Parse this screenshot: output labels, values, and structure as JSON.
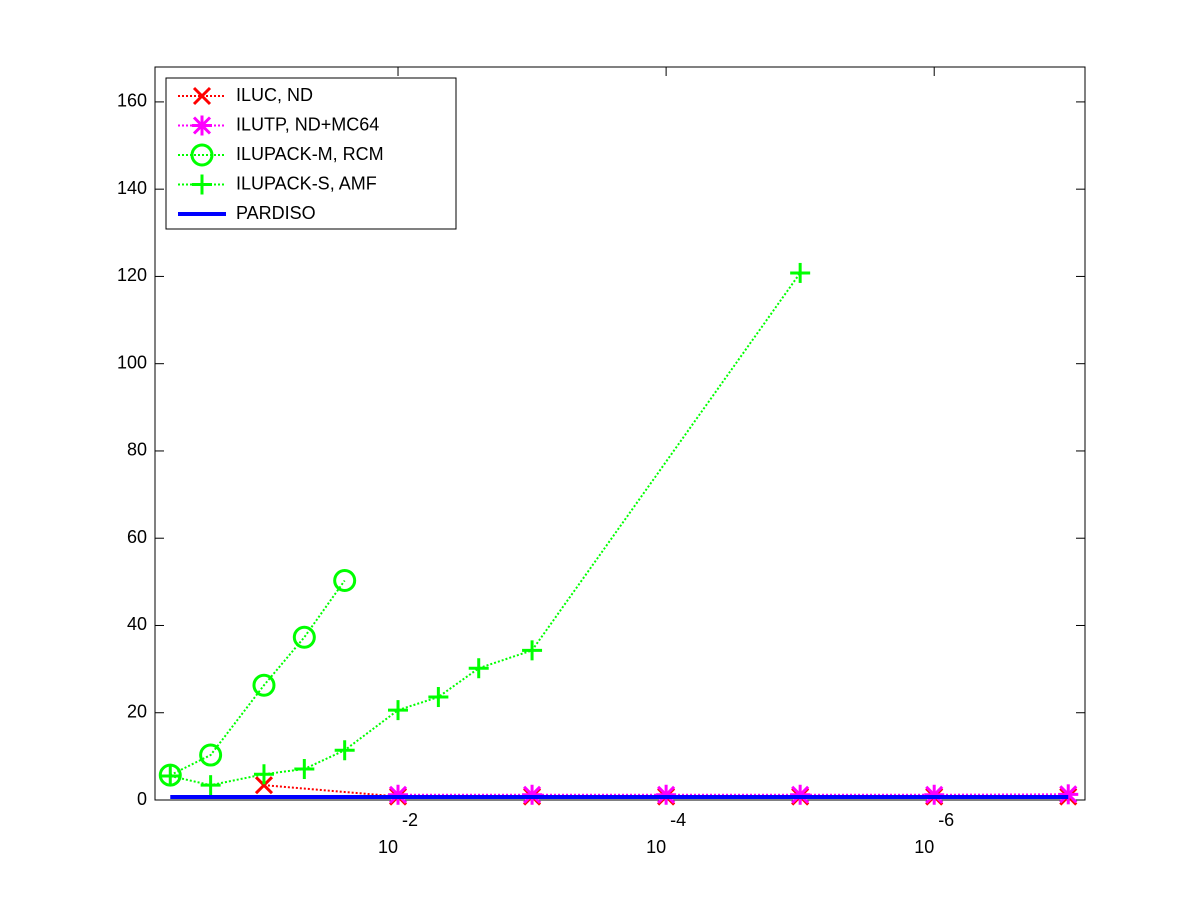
{
  "chart_data": {
    "type": "line",
    "xscale": "log",
    "xlim": [
      0.65,
      7.5e-08
    ],
    "xticks": [
      {
        "value": 0.01,
        "label": "10",
        "exponent": "-2"
      },
      {
        "value": 0.0001,
        "label": "10",
        "exponent": "-4"
      },
      {
        "value": 1e-06,
        "label": "10",
        "exponent": "-6"
      }
    ],
    "ylim": [
      0,
      168
    ],
    "yticks": [
      0,
      20,
      40,
      60,
      80,
      100,
      120,
      140,
      160
    ],
    "legend": "upper-left",
    "series": [
      {
        "name": "ILUC,  ND",
        "color": "#ff0000",
        "marker": "x",
        "linestyle": "dotted",
        "x": [
          0.1,
          0.01,
          0.001,
          0.0001,
          1e-05,
          1e-06,
          1e-07
        ],
        "values": [
          3.4,
          0.8,
          0.8,
          0.8,
          0.8,
          0.8,
          0.8
        ]
      },
      {
        "name": "ILUTP,  ND+MC64",
        "color": "#ff00ff",
        "marker": "asterisk",
        "linestyle": "dotted",
        "x": [
          0.01,
          0.001,
          0.0001,
          1e-05,
          1e-06,
          1e-07
        ],
        "values": [
          1.2,
          1.2,
          1.2,
          1.2,
          1.2,
          1.3
        ]
      },
      {
        "name": "ILUPACK-M, RCM",
        "color": "#00ff00",
        "marker": "circle",
        "linestyle": "dotted",
        "x": [
          0.5,
          0.25,
          0.1,
          0.05,
          0.025
        ],
        "values": [
          5.7,
          10.3,
          26.3,
          37.3,
          50.3
        ]
      },
      {
        "name": "ILUPACK-S, AMF",
        "color": "#00ff00",
        "marker": "plus",
        "linestyle": "dotted",
        "x": [
          0.5,
          0.25,
          0.1,
          0.05,
          0.025,
          0.01,
          0.005,
          0.0025,
          0.001,
          1e-05
        ],
        "values": [
          5.5,
          3.4,
          5.9,
          7.1,
          11.4,
          20.6,
          23.6,
          30.2,
          34.3,
          120.8
        ]
      },
      {
        "name": "PARDISO",
        "color": "#0000ff",
        "marker": "none",
        "linestyle": "solid",
        "x": [
          0.5,
          1e-07
        ],
        "values": [
          0.7,
          0.7
        ]
      }
    ]
  }
}
